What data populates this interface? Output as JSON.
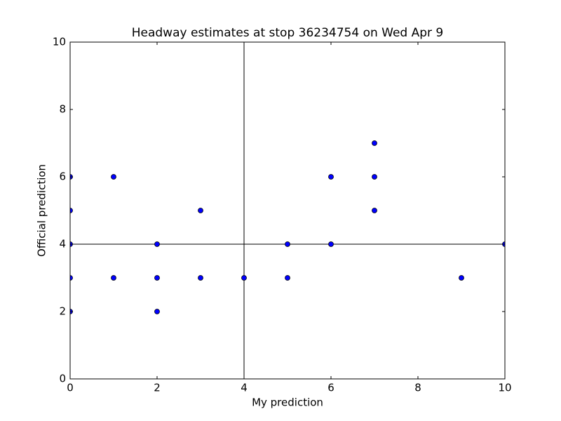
{
  "chart_data": {
    "type": "scatter",
    "title": "Headway estimates at stop 36234754 on Wed Apr 9",
    "xlabel": "My prediction",
    "ylabel": "Official prediction",
    "x": [
      0,
      0,
      0,
      0,
      0,
      1,
      1,
      2,
      2,
      2,
      3,
      3,
      4,
      5,
      5,
      6,
      6,
      7,
      7,
      7,
      9,
      10
    ],
    "values": [
      6,
      5,
      4,
      3,
      2,
      6,
      3,
      4,
      3,
      2,
      5,
      3,
      3,
      4,
      3,
      6,
      4,
      7,
      6,
      5,
      3,
      4
    ],
    "color": "#0000ff",
    "xlim": [
      0,
      10
    ],
    "ylim": [
      0,
      10
    ],
    "xticks": [
      0,
      2,
      4,
      6,
      8,
      10
    ],
    "yticks": [
      0,
      2,
      4,
      6,
      8,
      10
    ],
    "vline": 4,
    "hline": 4
  }
}
